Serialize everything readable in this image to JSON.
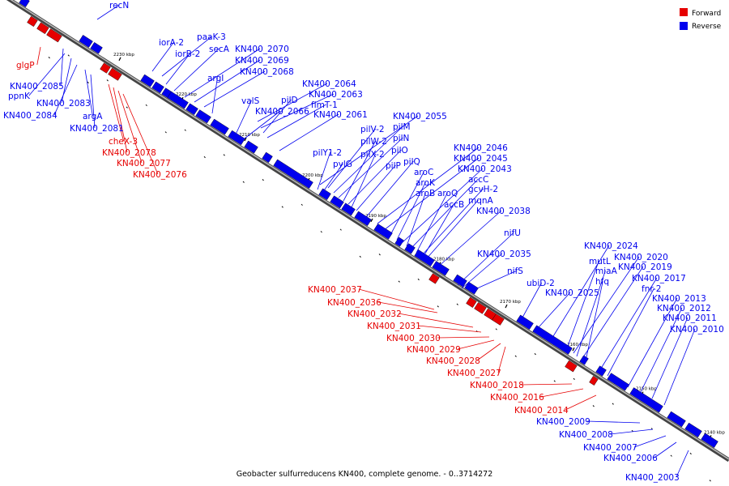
{
  "title": "Geobacter sulfurreducens KN400, complete genome. - 0..3714272",
  "legend": [
    {
      "label": "Forward",
      "color": "#e60000"
    },
    {
      "label": "Reverse",
      "color": "#0000ee"
    }
  ],
  "colors": {
    "forward": "#e60000",
    "reverse": "#0000ee",
    "backbone": "#555555"
  },
  "ticks": [
    "2230 kbp",
    "2220 kbp",
    "2210 kbp",
    "2200 kbp",
    "2190 kbp",
    "2180 kbp",
    "2170 kbp",
    "2160 kbp",
    "2150 kbp",
    "2140 kbp"
  ],
  "reverse_labels": [
    "recN",
    "iorA-2",
    "paaK-3",
    "iorB-2",
    "secA",
    "KN400_2070",
    "KN400_2069",
    "KN400_2068",
    "argI",
    "KN400_2064",
    "KN400_2063",
    "pilD",
    "valS",
    "fimT-1",
    "KN400_2066",
    "KN400_2061",
    "KN400_2055",
    "pilV-2",
    "pilM",
    "pilN",
    "pilW-2",
    "pilY1-2",
    "pilO",
    "pilX-2",
    "pylG",
    "pilP",
    "pilQ",
    "KN400_2046",
    "KN400_2045",
    "aroC",
    "KN400_2043",
    "aroK",
    "accC",
    "aroB",
    "aroQ",
    "gcvH-2",
    "mqnA",
    "accB",
    "KN400_2038",
    "nifU",
    "KN400_2035",
    "nifS",
    "ubiD-2",
    "KN400_2025",
    "KN400_2024",
    "mutL",
    "KN400_2020",
    "miaA",
    "KN400_2019",
    "hfq",
    "KN400_2017",
    "fnr-2",
    "KN400_2013",
    "KN400_2012",
    "KN400_2011",
    "KN400_2010",
    "KN400_2085",
    "ppnK",
    "KN400_2083",
    "KN400_2084",
    "argA",
    "KN400_2081",
    "KN400_2009",
    "KN400_2008",
    "KN400_2007",
    "KN400_2006",
    "KN400_2003"
  ],
  "forward_labels": [
    "glgP",
    "cheX-3",
    "KN400_2078",
    "KN400_2077",
    "KN400_2076",
    "KN400_2037",
    "KN400_2036",
    "KN400_2032",
    "KN400_2031",
    "KN400_2030",
    "KN400_2029",
    "KN400_2028",
    "KN400_2027",
    "KN400_2018",
    "KN400_2016",
    "KN400_2014"
  ]
}
